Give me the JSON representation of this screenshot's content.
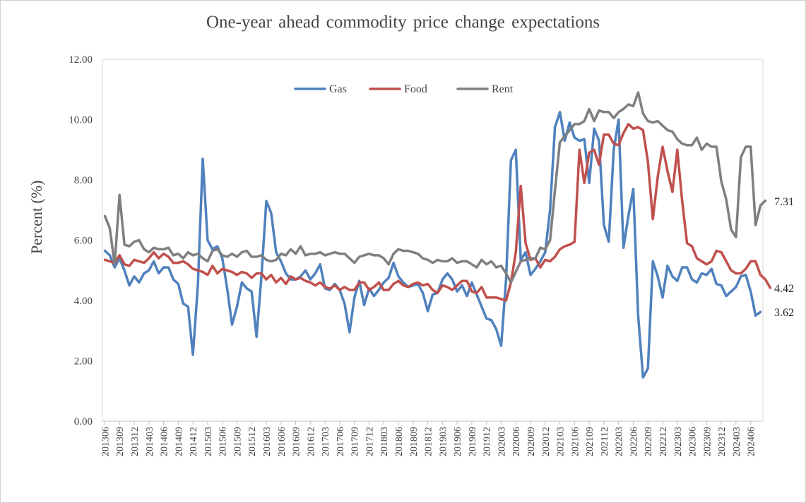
{
  "chart_data": {
    "type": "line",
    "title": "One-year ahead commodity price change expectations",
    "xlabel": "",
    "ylabel": "Percent (%)",
    "ylim": [
      0,
      12
    ],
    "yticks": [
      "0.00",
      "2.00",
      "4.00",
      "6.00",
      "8.00",
      "10.00",
      "12.00"
    ],
    "x_tick_labels": [
      "201306",
      "201309",
      "201312",
      "201403",
      "201406",
      "201409",
      "201412",
      "201503",
      "201506",
      "201509",
      "201512",
      "201603",
      "201606",
      "201609",
      "201612",
      "201703",
      "201706",
      "201709",
      "201712",
      "201803",
      "201806",
      "201809",
      "201812",
      "201903",
      "201906",
      "201909",
      "201912",
      "202003",
      "202006",
      "202009",
      "202012",
      "202103",
      "202106",
      "202109",
      "202112",
      "202203",
      "202206",
      "202209",
      "202212",
      "202303",
      "202306",
      "202309",
      "202312",
      "202403",
      "202406"
    ],
    "x_start": "2013-06",
    "x_end": "2024-08",
    "grid": false,
    "legend_position": "top-center",
    "end_labels": [
      "7.31",
      "4.42",
      "3.62"
    ],
    "series": [
      {
        "name": "Gas",
        "color": "#4f81bd",
        "values": [
          5.65,
          5.5,
          5.1,
          5.4,
          5.0,
          4.5,
          4.8,
          4.6,
          4.9,
          5.0,
          5.3,
          4.9,
          5.1,
          5.1,
          4.7,
          4.55,
          3.9,
          3.8,
          2.2,
          4.5,
          8.7,
          6.0,
          5.7,
          5.8,
          5.4,
          4.4,
          3.2,
          3.8,
          4.6,
          4.4,
          4.3,
          2.8,
          4.8,
          7.3,
          6.9,
          5.6,
          5.3,
          4.9,
          4.7,
          4.7,
          4.8,
          5.0,
          4.7,
          4.9,
          5.2,
          4.4,
          4.35,
          4.55,
          4.35,
          3.9,
          2.95,
          4.1,
          4.65,
          3.85,
          4.4,
          4.15,
          4.35,
          4.6,
          4.75,
          5.25,
          4.8,
          4.6,
          4.45,
          4.5,
          4.55,
          4.25,
          3.65,
          4.2,
          4.25,
          4.7,
          4.9,
          4.7,
          4.3,
          4.5,
          4.15,
          4.6,
          4.2,
          3.8,
          3.4,
          3.35,
          3.05,
          2.5,
          4.7,
          8.65,
          9.0,
          5.35,
          5.6,
          4.85,
          5.05,
          5.3,
          5.6,
          7.0,
          9.75,
          10.25,
          9.3,
          9.9,
          9.4,
          9.3,
          9.35,
          7.9,
          9.7,
          9.3,
          6.5,
          5.95,
          9.0,
          10.0,
          5.75,
          6.8,
          7.7,
          3.5,
          1.45,
          1.75,
          5.3,
          4.8,
          4.1,
          5.15,
          4.8,
          4.65,
          5.1,
          5.1,
          4.7,
          4.6,
          4.9,
          4.85,
          5.05,
          4.55,
          4.5,
          4.15,
          4.3,
          4.45,
          4.8,
          4.85,
          4.3,
          3.5,
          3.62
        ]
      },
      {
        "name": "Food",
        "color": "#c0504d",
        "values": [
          5.35,
          5.3,
          5.25,
          5.5,
          5.2,
          5.15,
          5.35,
          5.3,
          5.25,
          5.4,
          5.6,
          5.4,
          5.55,
          5.45,
          5.25,
          5.25,
          5.3,
          5.2,
          5.05,
          5.0,
          4.95,
          4.85,
          5.15,
          4.9,
          5.05,
          5.0,
          4.95,
          4.85,
          4.95,
          4.9,
          4.75,
          4.9,
          4.9,
          4.7,
          4.85,
          4.6,
          4.75,
          4.55,
          4.8,
          4.7,
          4.75,
          4.65,
          4.6,
          4.5,
          4.6,
          4.45,
          4.4,
          4.5,
          4.35,
          4.45,
          4.35,
          4.35,
          4.6,
          4.6,
          4.35,
          4.45,
          4.6,
          4.35,
          4.35,
          4.55,
          4.65,
          4.5,
          4.45,
          4.55,
          4.6,
          4.5,
          4.55,
          4.35,
          4.25,
          4.5,
          4.45,
          4.35,
          4.5,
          4.65,
          4.65,
          4.3,
          4.25,
          4.45,
          4.1,
          4.1,
          4.1,
          4.05,
          4.0,
          4.6,
          5.6,
          7.8,
          5.9,
          5.35,
          5.4,
          5.1,
          5.35,
          5.3,
          5.45,
          5.7,
          5.8,
          5.85,
          5.95,
          9.0,
          7.9,
          8.9,
          9.0,
          8.5,
          9.5,
          9.5,
          9.2,
          9.15,
          9.55,
          9.85,
          9.7,
          9.75,
          9.65,
          8.6,
          6.7,
          8.1,
          9.1,
          8.3,
          7.6,
          9.0,
          7.3,
          5.9,
          5.8,
          5.4,
          5.3,
          5.2,
          5.3,
          5.65,
          5.6,
          5.3,
          5.0,
          4.9,
          4.9,
          5.05,
          5.3,
          5.3,
          4.85,
          4.7,
          4.42
        ]
      },
      {
        "name": "Rent",
        "color": "#7f7f7f",
        "values": [
          6.8,
          6.4,
          5.2,
          7.5,
          5.85,
          5.8,
          5.95,
          6.0,
          5.7,
          5.6,
          5.75,
          5.7,
          5.7,
          5.75,
          5.5,
          5.55,
          5.4,
          5.6,
          5.5,
          5.55,
          5.4,
          5.3,
          5.65,
          5.7,
          5.5,
          5.45,
          5.55,
          5.45,
          5.6,
          5.65,
          5.45,
          5.45,
          5.5,
          5.35,
          5.3,
          5.35,
          5.55,
          5.5,
          5.7,
          5.55,
          5.8,
          5.5,
          5.55,
          5.55,
          5.6,
          5.5,
          5.55,
          5.6,
          5.55,
          5.55,
          5.4,
          5.25,
          5.45,
          5.5,
          5.55,
          5.5,
          5.5,
          5.4,
          5.2,
          5.55,
          5.7,
          5.65,
          5.65,
          5.6,
          5.55,
          5.4,
          5.35,
          5.25,
          5.35,
          5.3,
          5.3,
          5.4,
          5.25,
          5.3,
          5.3,
          5.2,
          5.1,
          5.35,
          5.2,
          5.3,
          5.1,
          5.15,
          4.9,
          4.6,
          4.95,
          5.3,
          5.35,
          5.4,
          5.4,
          5.75,
          5.7,
          6.0,
          7.65,
          9.25,
          9.45,
          9.65,
          9.85,
          9.85,
          9.95,
          10.35,
          9.95,
          10.3,
          10.25,
          10.25,
          10.05,
          10.25,
          10.35,
          10.5,
          10.45,
          10.9,
          10.2,
          9.95,
          9.9,
          9.95,
          9.8,
          9.65,
          9.6,
          9.35,
          9.2,
          9.15,
          9.15,
          9.4,
          9.0,
          9.2,
          9.1,
          9.1,
          7.95,
          7.35,
          6.35,
          6.1,
          8.75,
          9.1,
          9.1,
          6.5,
          7.15,
          7.31
        ]
      }
    ]
  }
}
